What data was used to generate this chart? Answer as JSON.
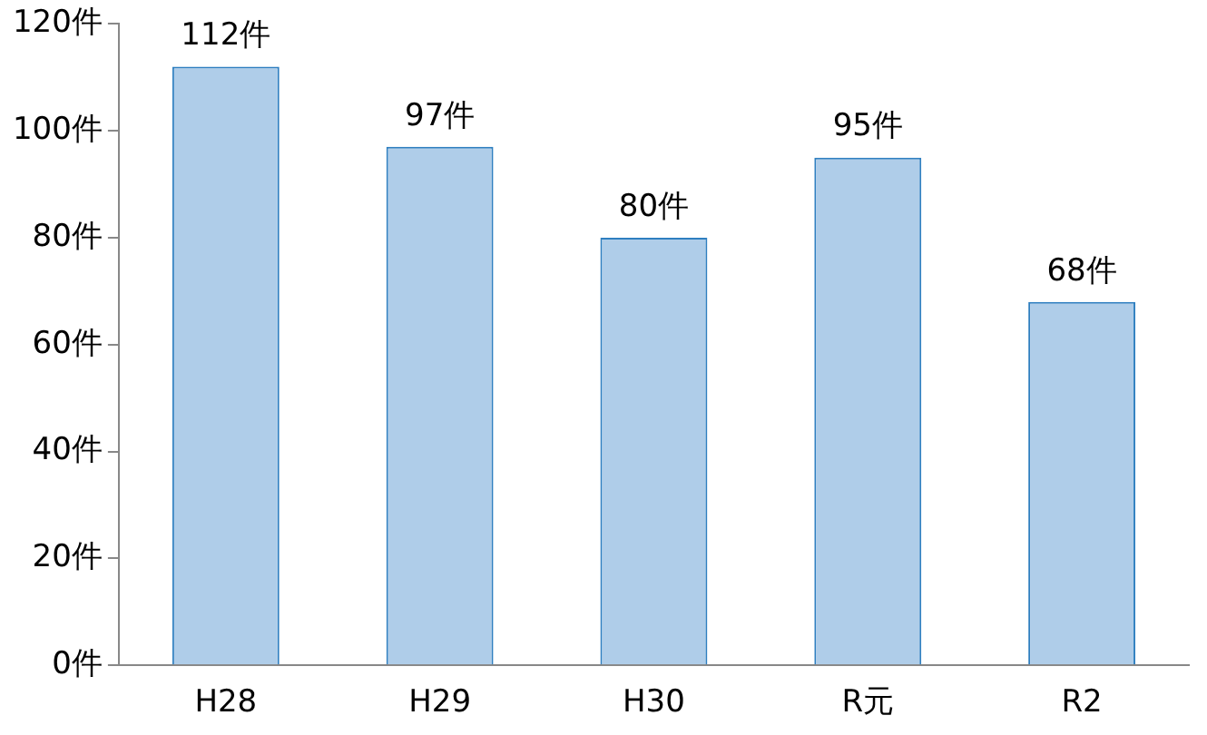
{
  "chart_data": {
    "type": "bar",
    "categories": [
      "H28",
      "H29",
      "H30",
      "R元",
      "R2"
    ],
    "values": [
      112,
      97,
      80,
      95,
      68
    ],
    "value_labels": [
      "112件",
      "97件",
      "80件",
      "95件",
      "68件"
    ],
    "color": "#afcde9",
    "ylim": [
      0,
      120
    ],
    "yticks": [
      {
        "value": 0,
        "label": "0件"
      },
      {
        "value": 20,
        "label": "20件"
      },
      {
        "value": 40,
        "label": "40件"
      },
      {
        "value": 60,
        "label": "60件"
      },
      {
        "value": 80,
        "label": "80件"
      },
      {
        "value": 100,
        "label": "100件"
      },
      {
        "value": 120,
        "label": "120件"
      }
    ],
    "grid": false,
    "legend": false
  }
}
